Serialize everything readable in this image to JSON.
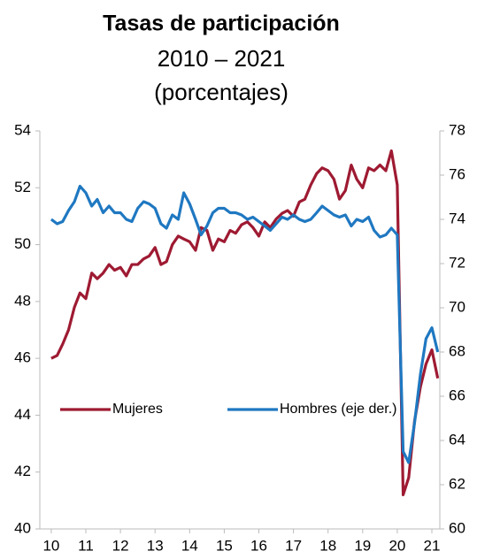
{
  "chart_data": {
    "type": "line",
    "title": "Tasas de participación",
    "subtitle": [
      "2010 – 2021",
      "(porcentajes)"
    ],
    "x": [
      10.0,
      10.17,
      10.33,
      10.5,
      10.67,
      10.83,
      11.0,
      11.17,
      11.33,
      11.5,
      11.67,
      11.83,
      12.0,
      12.17,
      12.33,
      12.5,
      12.67,
      12.83,
      13.0,
      13.17,
      13.33,
      13.5,
      13.67,
      13.83,
      14.0,
      14.17,
      14.33,
      14.5,
      14.67,
      14.83,
      15.0,
      15.17,
      15.33,
      15.5,
      15.67,
      15.83,
      16.0,
      16.17,
      16.33,
      16.5,
      16.67,
      16.83,
      17.0,
      17.17,
      17.33,
      17.5,
      17.67,
      17.83,
      18.0,
      18.17,
      18.33,
      18.5,
      18.67,
      18.83,
      19.0,
      19.17,
      19.33,
      19.5,
      19.67,
      19.83,
      20.0,
      20.17,
      20.33,
      20.5,
      20.67,
      20.83,
      21.0,
      21.17
    ],
    "series": [
      {
        "name": "Mujeres",
        "color": "#9e1a32",
        "values": [
          46.0,
          46.1,
          46.5,
          47.0,
          47.8,
          48.3,
          48.1,
          49.0,
          48.8,
          49.0,
          49.3,
          49.1,
          49.2,
          48.9,
          49.3,
          49.3,
          49.5,
          49.6,
          49.9,
          49.3,
          49.4,
          50.0,
          50.3,
          50.2,
          50.1,
          49.8,
          50.6,
          50.5,
          49.8,
          50.2,
          50.1,
          50.5,
          50.4,
          50.7,
          50.8,
          50.6,
          50.3,
          50.8,
          50.6,
          50.9,
          51.1,
          51.2,
          51.0,
          51.5,
          51.6,
          52.1,
          52.5,
          52.7,
          52.6,
          52.3,
          51.6,
          51.9,
          52.8,
          52.3,
          52.0,
          52.7,
          52.6,
          52.8,
          52.6,
          53.3,
          52.1,
          41.2,
          41.8,
          43.8,
          45.0,
          45.8,
          46.3,
          45.3
        ]
      },
      {
        "name": "Hombres (eje der.)",
        "color": "#1f78c1",
        "axis": "y2",
        "values": [
          74.0,
          73.8,
          73.9,
          74.4,
          74.8,
          75.5,
          75.2,
          74.6,
          74.9,
          74.3,
          74.6,
          74.3,
          74.3,
          74.0,
          73.9,
          74.5,
          74.8,
          74.7,
          74.5,
          73.8,
          73.6,
          74.2,
          74.0,
          75.2,
          74.7,
          74.0,
          73.3,
          73.7,
          74.3,
          74.5,
          74.5,
          74.3,
          74.3,
          74.2,
          74.0,
          74.1,
          73.9,
          73.7,
          73.5,
          73.8,
          74.1,
          74.0,
          74.2,
          74.0,
          73.9,
          74.0,
          74.3,
          74.6,
          74.4,
          74.2,
          74.1,
          74.2,
          73.7,
          74.0,
          73.9,
          74.1,
          73.5,
          73.2,
          73.3,
          73.6,
          73.3,
          63.5,
          63.0,
          64.8,
          67.0,
          68.6,
          69.1,
          68.0
        ]
      }
    ],
    "xlim": [
      9.67,
      21.23
    ],
    "xticks": [
      10,
      11,
      12,
      13,
      14,
      15,
      16,
      17,
      18,
      19,
      20,
      21
    ],
    "ylim": [
      40,
      54
    ],
    "yticks": [
      40,
      42,
      44,
      46,
      48,
      50,
      52,
      54
    ],
    "y2lim": [
      60,
      78
    ],
    "y2ticks": [
      60,
      62,
      64,
      66,
      68,
      70,
      72,
      74,
      76,
      78
    ],
    "legend": "middle",
    "grid": false
  }
}
